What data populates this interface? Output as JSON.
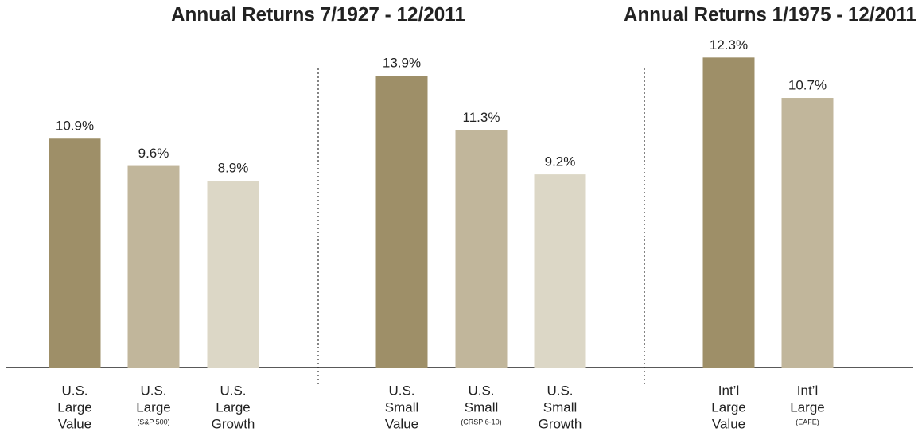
{
  "chart_data": {
    "type": "bar",
    "panels": [
      {
        "title": "Annual Returns 7/1927 - 12/2011",
        "categories": [
          [
            "U.S.",
            "Large",
            "Value"
          ],
          [
            "U.S.",
            "Large"
          ],
          [
            "U.S.",
            "Large",
            "Growth"
          ],
          [
            "U.S.",
            "Small",
            "Value"
          ],
          [
            "U.S.",
            "Small"
          ],
          [
            "U.S.",
            "Small",
            "Growth"
          ]
        ],
        "notes": [
          null,
          "(S&P 500)",
          null,
          null,
          "(CRSP 6-10)",
          null
        ],
        "values": [
          10.9,
          9.6,
          8.9,
          13.9,
          11.3,
          9.2
        ],
        "value_labels": [
          "10.9%",
          "9.6%",
          "8.9%",
          "13.9%",
          "11.3%",
          "9.2%"
        ],
        "colors": [
          "#9e8f68",
          "#c1b69b",
          "#dcd7c6",
          "#9e8f68",
          "#c1b69b",
          "#dcd7c6"
        ],
        "ylim": [
          0,
          15
        ]
      },
      {
        "title": "Annual Returns 1/1975 - 12/2011",
        "categories": [
          [
            "Int’l",
            "Large",
            "Value"
          ],
          [
            "Int’l",
            "Large"
          ]
        ],
        "notes": [
          null,
          "(EAFE)"
        ],
        "values": [
          12.3,
          10.7
        ],
        "value_labels": [
          "12.3%",
          "10.7%"
        ],
        "colors": [
          "#9e8f68",
          "#c1b69b"
        ],
        "ylim": [
          0,
          12.5
        ]
      }
    ]
  }
}
